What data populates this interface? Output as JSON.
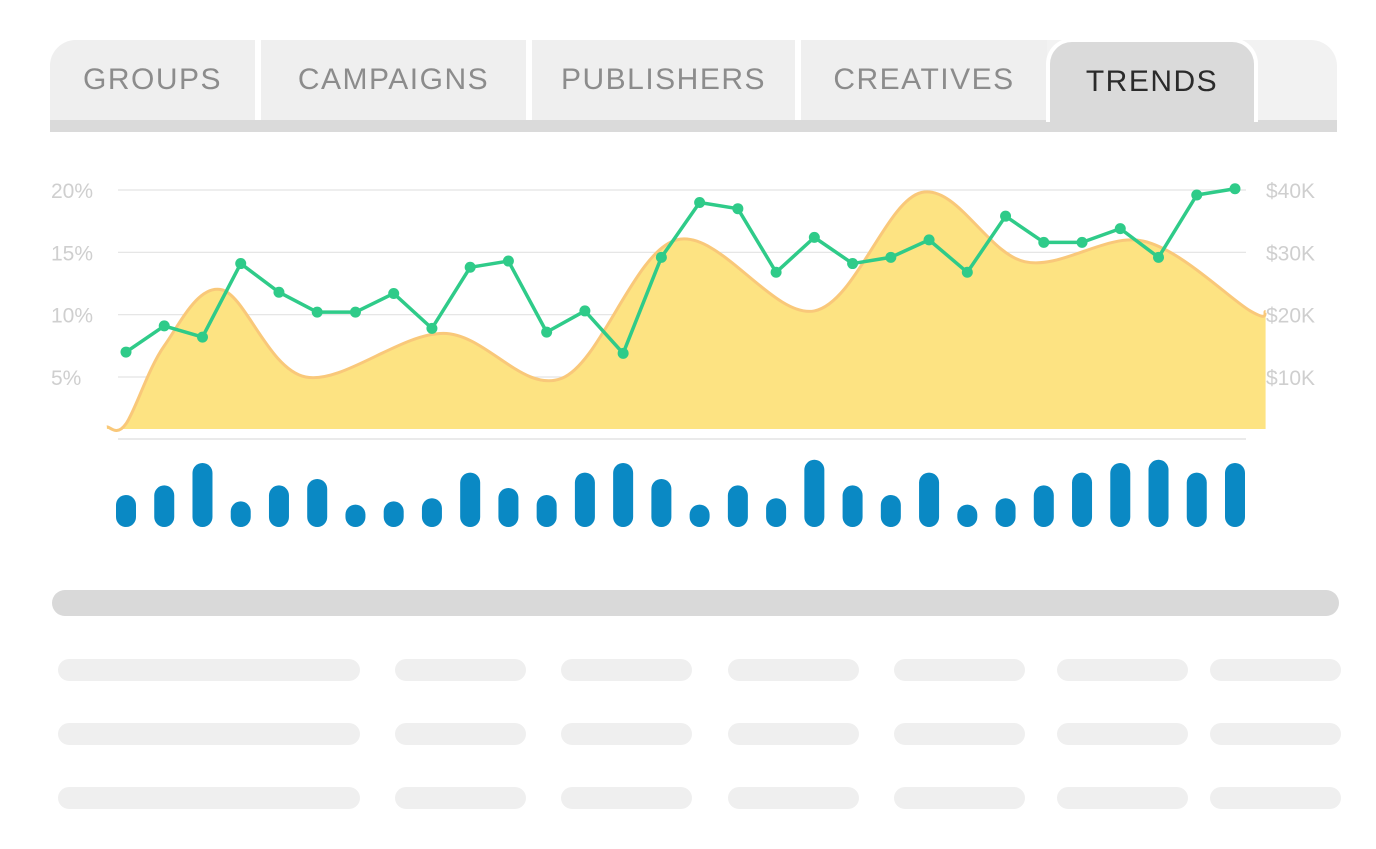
{
  "tabs": [
    {
      "label": "GROUPS",
      "active": false
    },
    {
      "label": "CAMPAIGNS",
      "active": false
    },
    {
      "label": "PUBLISHERS",
      "active": false
    },
    {
      "label": "CREATIVES",
      "active": false
    },
    {
      "label": "TRENDS",
      "active": true
    }
  ],
  "colors": {
    "area_fill": "#fde382",
    "area_stroke": "#f9c87a",
    "line": "#2fcb89",
    "bars": "#0a89c4",
    "grid": "#e3e3e3",
    "axis_text": "#cfcfcf"
  },
  "chart_data": {
    "type": "line",
    "x_count": 30,
    "left_axis": {
      "ticks": [
        "20%",
        "15%",
        "10%",
        "5%"
      ],
      "tick_values": [
        20,
        15,
        10,
        5
      ],
      "range": [
        0.9,
        20
      ]
    },
    "right_axis": {
      "ticks": [
        "$40K",
        "$30K",
        "$20K",
        "$10K"
      ],
      "tick_values": [
        40000,
        30000,
        20000,
        10000
      ],
      "range": [
        1800,
        40000
      ]
    },
    "grid": true,
    "series": [
      {
        "role": "line",
        "axis": "left",
        "values": [
          7.0,
          9.1,
          8.2,
          14.1,
          11.8,
          10.2,
          10.2,
          11.7,
          8.9,
          13.8,
          14.3,
          8.6,
          10.3,
          6.9,
          14.6,
          19.0,
          18.5,
          13.4,
          16.2,
          14.1,
          14.6,
          16.0,
          13.4,
          17.9,
          15.8,
          15.8,
          16.9,
          14.6,
          19.6,
          20.1
        ]
      },
      {
        "role": "area",
        "axis": "right",
        "points": [
          {
            "x": -0.5,
            "y": 2000
          },
          {
            "x": 0,
            "y": 2500
          },
          {
            "x": 1,
            "y": 15000
          },
          {
            "x": 2.5,
            "y": 24000
          },
          {
            "x": 4.7,
            "y": 10000
          },
          {
            "x": 8.3,
            "y": 17000
          },
          {
            "x": 11.4,
            "y": 9800
          },
          {
            "x": 14.4,
            "y": 32000
          },
          {
            "x": 18,
            "y": 20600
          },
          {
            "x": 20.8,
            "y": 39600
          },
          {
            "x": 23.5,
            "y": 28500
          },
          {
            "x": 26.6,
            "y": 31800
          },
          {
            "x": 29.4,
            "y": 20600
          },
          {
            "x": 29.8,
            "y": 20500
          }
        ]
      },
      {
        "role": "bars",
        "values": [
          5,
          6.5,
          10,
          4,
          6.5,
          7.5,
          3.5,
          4,
          4.5,
          8.5,
          6.1,
          5,
          8.5,
          10,
          7.5,
          3.5,
          6.5,
          4.5,
          10.5,
          6.5,
          5,
          8.5,
          3.5,
          4.5,
          6.5,
          8.5,
          10,
          10.5,
          8.5,
          10
        ]
      }
    ]
  }
}
